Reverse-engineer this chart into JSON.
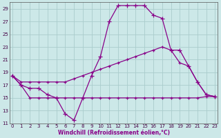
{
  "bg_color": "#cce8e8",
  "line_color": "#880088",
  "grid_color": "#aacccc",
  "xlabel": "Windchill (Refroidissement éolien,°C)",
  "xmin": 0,
  "xmax": 23,
  "ymin": 11,
  "ymax": 30,
  "yticks": [
    11,
    13,
    15,
    17,
    19,
    21,
    23,
    25,
    27,
    29
  ],
  "xticks": [
    0,
    1,
    2,
    3,
    4,
    5,
    6,
    7,
    8,
    9,
    10,
    11,
    12,
    13,
    14,
    15,
    16,
    17,
    18,
    19,
    20,
    21,
    22,
    23
  ],
  "line1_x": [
    0,
    1,
    2,
    3,
    4,
    5,
    6,
    7,
    8,
    9,
    10,
    11,
    12,
    13,
    14,
    15,
    16,
    17,
    18,
    19,
    20,
    21,
    22,
    23
  ],
  "line1_y": [
    18.5,
    17.0,
    16.5,
    16.5,
    15.5,
    15.0,
    12.5,
    11.5,
    15.0,
    18.5,
    21.5,
    27.0,
    29.5,
    29.5,
    29.5,
    29.5,
    28.0,
    27.5,
    22.5,
    22.5,
    20.0,
    17.5,
    15.5,
    15.2
  ],
  "line2_x": [
    0,
    1,
    2,
    3,
    4,
    5,
    6,
    7,
    8,
    9,
    10,
    11,
    12,
    13,
    14,
    15,
    16,
    17,
    18,
    19,
    20,
    21,
    22,
    23
  ],
  "line2_y": [
    18.5,
    17.5,
    17.5,
    17.5,
    17.5,
    17.5,
    17.5,
    18.0,
    18.5,
    19.0,
    19.5,
    20.0,
    20.5,
    21.0,
    21.5,
    22.0,
    22.5,
    23.0,
    22.5,
    20.5,
    20.0,
    17.5,
    15.5,
    15.2
  ],
  "line3_x": [
    0,
    1,
    2,
    3,
    4,
    5,
    6,
    7,
    8,
    9,
    10,
    11,
    12,
    13,
    14,
    15,
    16,
    17,
    18,
    19,
    20,
    21,
    22,
    23
  ],
  "line3_y": [
    18.5,
    17.0,
    15.0,
    15.0,
    15.0,
    15.0,
    15.0,
    15.0,
    15.0,
    15.0,
    15.0,
    15.0,
    15.0,
    15.0,
    15.0,
    15.0,
    15.0,
    15.0,
    15.0,
    15.0,
    15.0,
    15.0,
    15.2,
    15.2
  ]
}
